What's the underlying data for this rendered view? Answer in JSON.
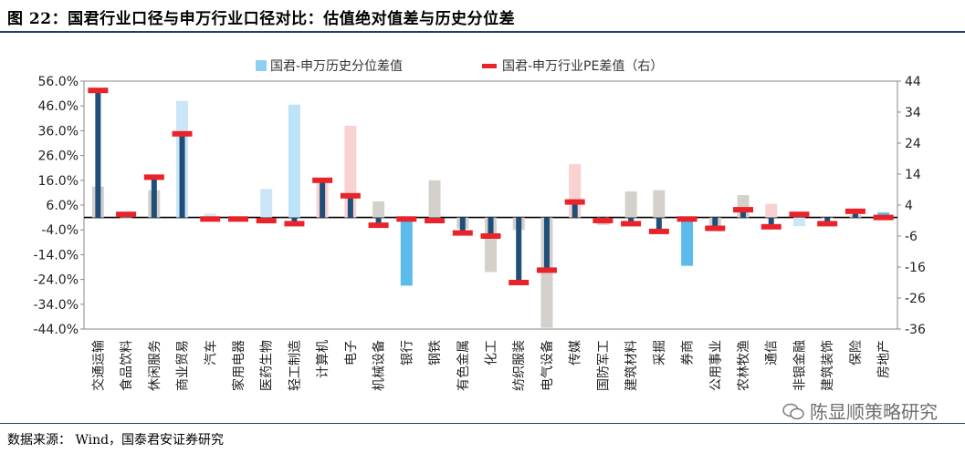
{
  "header": {
    "title": "图 22：国君行业口径与申万行业口径对比：估值绝对值差与历史分位差"
  },
  "footer": {
    "source": "数据来源：  Wind，国泰君安证券研究",
    "watermark": "陈显顺策略研究"
  },
  "chart_data": {
    "type": "bar",
    "categories": [
      "交通运输",
      "食品饮料",
      "休闲服务",
      "商业贸易",
      "汽车",
      "家用电器",
      "医药生物",
      "轻工制造",
      "计算机",
      "电子",
      "机械设备",
      "银行",
      "钢铁",
      "有色金属",
      "化工",
      "纺织服装",
      "电气设备",
      "传媒",
      "国防军工",
      "建筑材料",
      "采掘",
      "券商",
      "公用事业",
      "农林牧渔",
      "通信",
      "非银金融",
      "建筑装饰",
      "保险",
      "房地产"
    ],
    "series": [
      {
        "name": "国君-申万历史分位差值",
        "axis": "left",
        "values": [
          13.5,
          0.5,
          12,
          48,
          2.5,
          0.5,
          12.5,
          46.5,
          16,
          38,
          7.5,
          -26.5,
          16,
          -3.5,
          -21,
          -4,
          -43.5,
          22.5,
          -2,
          11.5,
          12,
          -18.5,
          -4.5,
          10,
          6.5,
          -2.5,
          0.5,
          2,
          3
        ],
        "colors": [
          "#d4d0cc",
          "#d4d0cc",
          "#d4d0cc",
          "#cbe6f7",
          "#cbe6f7",
          "#d4d0cc",
          "#cbe6f7",
          "#bfe3f6",
          "#fad1d1",
          "#fad1d1",
          "#d4d0cc",
          "#5bbcec",
          "#d4d0cc",
          "#d4d0cc",
          "#d4d0cc",
          "#d4d0cc",
          "#d4d0cc",
          "#fad1d1",
          "#d4d0cc",
          "#d4d0cc",
          "#d4d0cc",
          "#5bbcec",
          "#d4d0cc",
          "#d4d0cc",
          "#fad1d1",
          "#cbe6f7",
          "#d4d0cc",
          "#d4d0cc",
          "#5bbcec"
        ]
      },
      {
        "name": "国君-申万行业PE差值（右）",
        "axis": "right",
        "values": [
          41,
          1,
          13,
          27,
          -0.5,
          -0.5,
          -1,
          -2,
          12,
          7,
          -2.5,
          -0.5,
          -1,
          -5,
          -6,
          -21,
          -17,
          5,
          -1,
          -2,
          -4.5,
          -0.5,
          -3.5,
          2.5,
          -3,
          1,
          -2,
          2,
          0
        ],
        "color": "#1f4e79",
        "marker_color": "#e8232a"
      }
    ],
    "y_left": {
      "min": -44,
      "max": 56,
      "ticks": [
        "56.0%",
        "46.0%",
        "36.0%",
        "26.0%",
        "16.0%",
        "6.0%",
        "-4.0%",
        "-14.0%",
        "-24.0%",
        "-34.0%",
        "-44.0%"
      ],
      "tick_values": [
        56,
        46,
        36,
        26,
        16,
        6,
        -4,
        -14,
        -24,
        -34,
        -44
      ]
    },
    "y_right": {
      "min": -36,
      "max": 44,
      "ticks": [
        "44",
        "34",
        "24",
        "14",
        "4",
        "-6",
        "-16",
        "-26",
        "-36"
      ],
      "tick_values": [
        44,
        34,
        24,
        14,
        4,
        -6,
        -16,
        -26,
        -36
      ]
    },
    "legend_position": "top"
  }
}
